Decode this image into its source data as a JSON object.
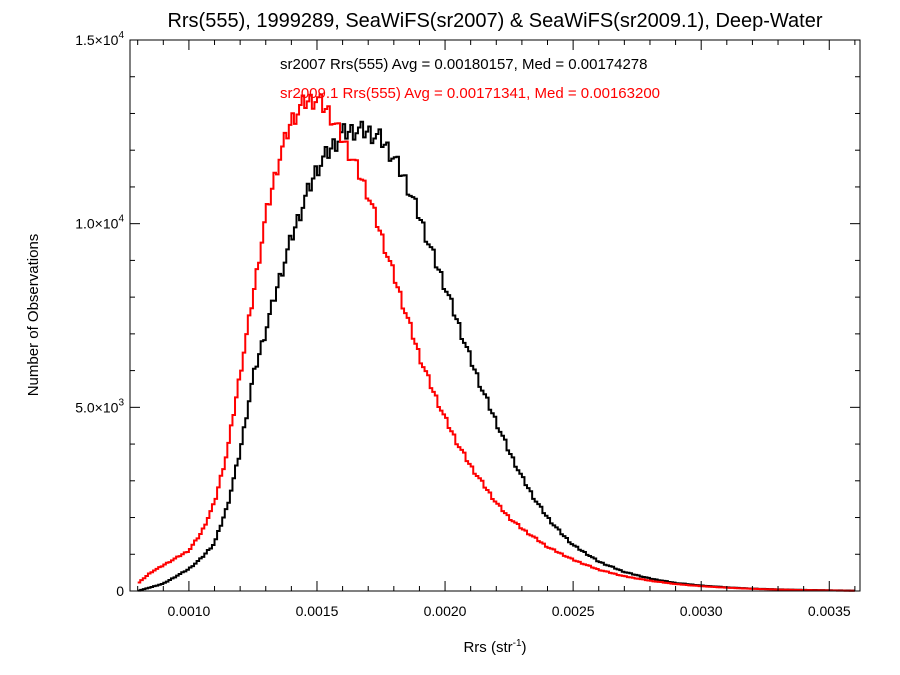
{
  "chart_data": {
    "type": "line",
    "title": "Rrs(555), 1999289, SeaWiFS(sr2007) & SeaWiFS(sr2009.1), Deep-Water",
    "xlabel": "Rrs (str",
    "xlabel_sup": "-1",
    "xlabel_close": ")",
    "ylabel": "Number of Observations",
    "xlim": [
      0.00077,
      0.00362
    ],
    "ylim": [
      0,
      15000
    ],
    "xticks": [
      {
        "value": 0.001,
        "label": "0.0010"
      },
      {
        "value": 0.0015,
        "label": "0.0015"
      },
      {
        "value": 0.002,
        "label": "0.0020"
      },
      {
        "value": 0.0025,
        "label": "0.0025"
      },
      {
        "value": 0.003,
        "label": "0.0030"
      },
      {
        "value": 0.0035,
        "label": "0.0035"
      }
    ],
    "yticks": [
      {
        "value": 0,
        "mant": "0",
        "exp": ""
      },
      {
        "value": 5000,
        "mant": "5.0×10",
        "exp": "3"
      },
      {
        "value": 10000,
        "mant": "1.0×10",
        "exp": "4"
      },
      {
        "value": 15000,
        "mant": "1.5×10",
        "exp": "4"
      }
    ],
    "x_minor_step": 0.0001,
    "y_minor_step": 1000,
    "grid": false,
    "annotations": [
      {
        "text": "sr2007 Rrs(555) Avg = 0.00180157, Med = 0.00174278",
        "color": "#000000"
      },
      {
        "text": "sr2009.1 Rrs(555) Avg = 0.00171341, Med = 0.00163200",
        "color": "#ff0000"
      }
    ],
    "series": [
      {
        "name": "sr2007",
        "color": "#000000",
        "x": [
          0.0008,
          0.0009,
          0.001,
          0.00105,
          0.0011,
          0.00115,
          0.0012,
          0.00125,
          0.0013,
          0.00135,
          0.0014,
          0.00145,
          0.0015,
          0.00155,
          0.0016,
          0.00165,
          0.0017,
          0.00175,
          0.0018,
          0.00185,
          0.0019,
          0.00195,
          0.002,
          0.00205,
          0.0021,
          0.00215,
          0.0022,
          0.00225,
          0.0023,
          0.00235,
          0.0024,
          0.00245,
          0.0025,
          0.0026,
          0.0027,
          0.0028,
          0.0029,
          0.003,
          0.0031,
          0.0032,
          0.0033,
          0.0034,
          0.0035,
          0.0036
        ],
        "values": [
          0,
          200,
          600,
          900,
          1300,
          2300,
          3800,
          5800,
          7100,
          8400,
          9600,
          10600,
          11500,
          12000,
          12450,
          12550,
          12500,
          12300,
          11800,
          11100,
          10200,
          9200,
          8300,
          7300,
          6300,
          5400,
          4600,
          3800,
          3100,
          2500,
          2000,
          1600,
          1250,
          800,
          520,
          340,
          220,
          150,
          100,
          65,
          45,
          30,
          20,
          10
        ],
        "amp": 0.02
      },
      {
        "name": "sr2009.1",
        "color": "#ff0000",
        "x": [
          0.0008,
          0.00085,
          0.0009,
          0.00095,
          0.001,
          0.00105,
          0.0011,
          0.00115,
          0.0012,
          0.00125,
          0.0013,
          0.00135,
          0.0014,
          0.00145,
          0.0015,
          0.00155,
          0.0016,
          0.00165,
          0.0017,
          0.00175,
          0.0018,
          0.00185,
          0.0019,
          0.00195,
          0.002,
          0.00205,
          0.0021,
          0.00215,
          0.0022,
          0.00225,
          0.0023,
          0.0024,
          0.0025,
          0.0026,
          0.0027,
          0.0028,
          0.0029,
          0.003,
          0.0031,
          0.0032,
          0.0033,
          0.0034,
          0.0035,
          0.0036
        ],
        "values": [
          200,
          500,
          700,
          900,
          1100,
          1600,
          2400,
          3800,
          5900,
          8000,
          10200,
          11700,
          12800,
          13300,
          13400,
          13000,
          12300,
          11600,
          10800,
          9700,
          8600,
          7500,
          6400,
          5500,
          4700,
          4000,
          3400,
          2900,
          2400,
          2000,
          1700,
          1200,
          850,
          580,
          400,
          280,
          190,
          130,
          90,
          60,
          40,
          25,
          15,
          5
        ],
        "amp": 0.018
      }
    ]
  }
}
